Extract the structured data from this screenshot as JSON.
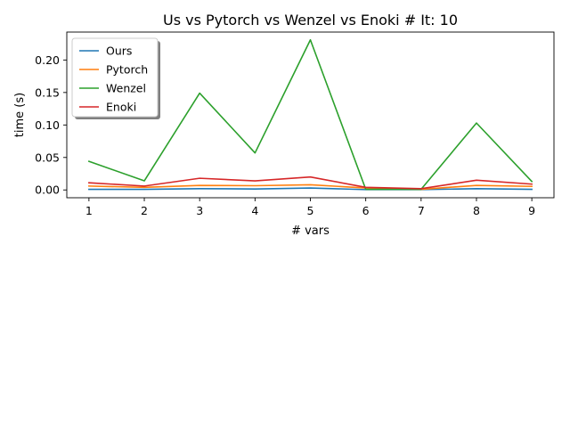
{
  "chart_data": {
    "type": "line",
    "title": "Us vs Pytorch vs Wenzel vs Enoki # It: 10",
    "xlabel": "# vars",
    "ylabel": "time (s)",
    "x": [
      1,
      2,
      3,
      4,
      5,
      6,
      7,
      8,
      9
    ],
    "xticks": [
      "1",
      "2",
      "3",
      "4",
      "5",
      "6",
      "7",
      "8",
      "9"
    ],
    "yticks": [
      "0.00",
      "0.05",
      "0.10",
      "0.15",
      "0.20"
    ],
    "ytick_values": [
      0,
      0.05,
      0.1,
      0.15,
      0.2
    ],
    "xlim": [
      0.6,
      9.4
    ],
    "ylim": [
      -0.012,
      0.243
    ],
    "grid": false,
    "legend_position": "top-left",
    "series": [
      {
        "name": "Ours",
        "color": "#1f77b4",
        "values": [
          0.001,
          0.001,
          0.002,
          0.0015,
          0.003,
          0.0005,
          0.0005,
          0.002,
          0.001
        ]
      },
      {
        "name": "Pytorch",
        "color": "#ff7f0e",
        "values": [
          0.006,
          0.004,
          0.007,
          0.0065,
          0.008,
          0.003,
          0.001,
          0.007,
          0.0055
        ]
      },
      {
        "name": "Wenzel",
        "color": "#2ca02c",
        "values": [
          0.044,
          0.014,
          0.149,
          0.057,
          0.231,
          0.001,
          0.001,
          0.103,
          0.013
        ]
      },
      {
        "name": "Enoki",
        "color": "#d62728",
        "values": [
          0.011,
          0.006,
          0.018,
          0.014,
          0.02,
          0.004,
          0.002,
          0.015,
          0.009
        ]
      }
    ]
  }
}
